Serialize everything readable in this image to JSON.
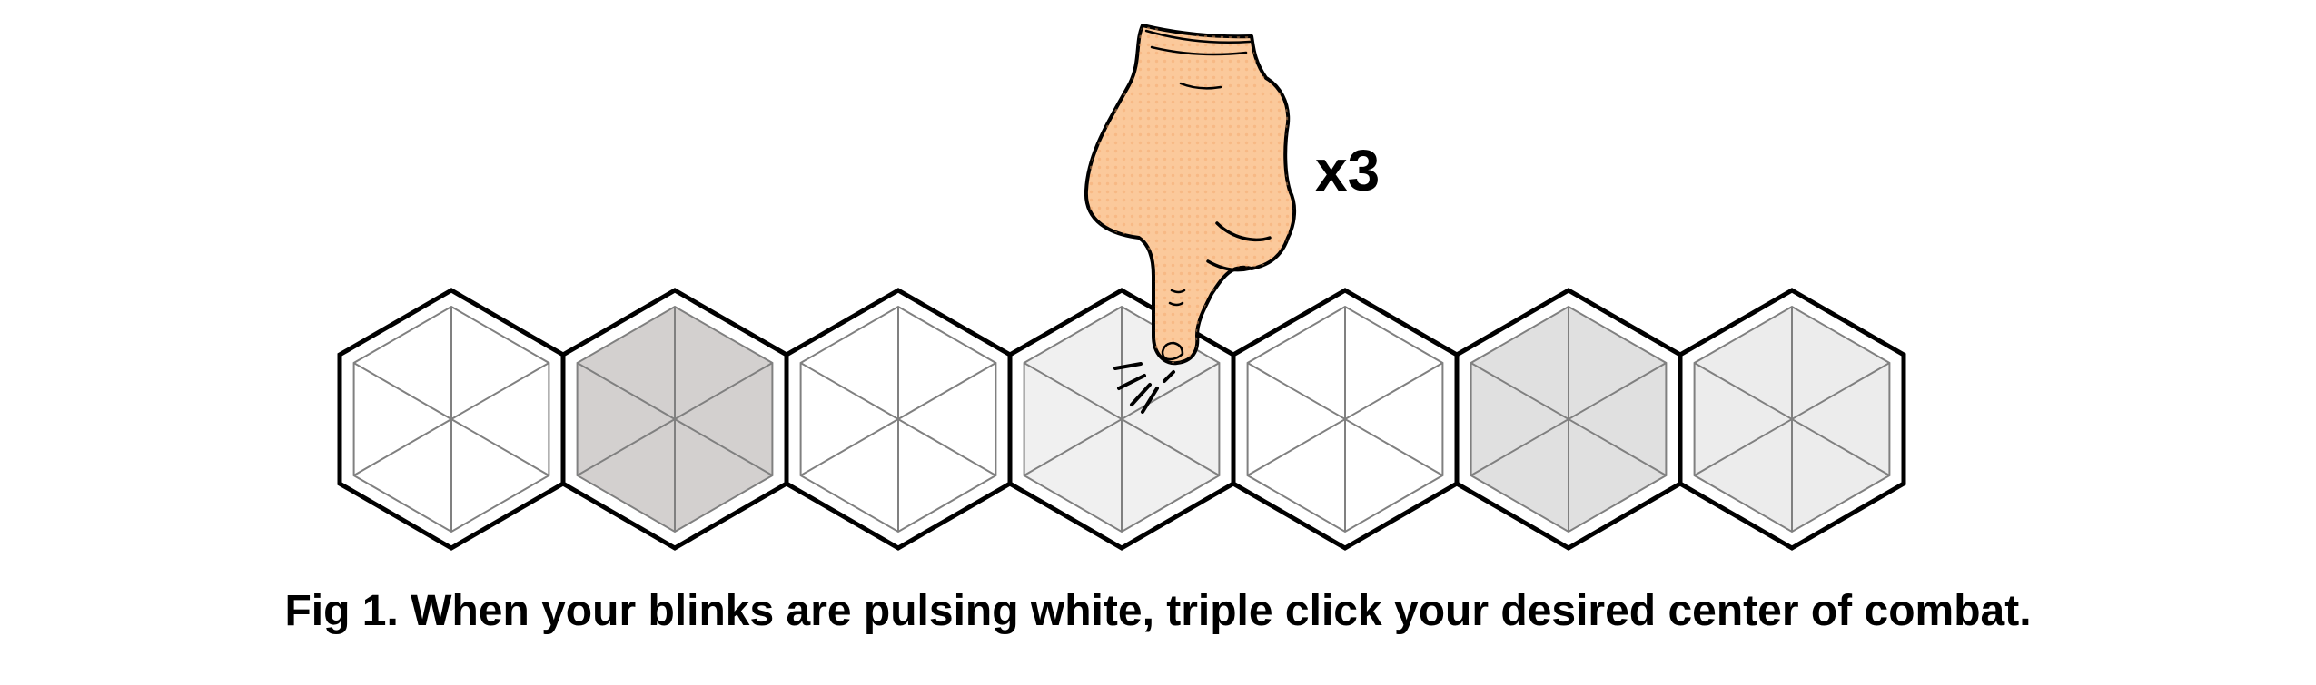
{
  "figure": {
    "tap_count_label": "x3",
    "caption": "Fig 1. When your blinks are pulsing white, triple click your desired center of combat.",
    "selected_blink": 4,
    "blinks": [
      {
        "name": "blink-1",
        "fill": "#ffffff"
      },
      {
        "name": "blink-2",
        "fill": "#d3d0cf"
      },
      {
        "name": "blink-3",
        "fill": "#ffffff"
      },
      {
        "name": "blink-4",
        "fill": "#f0f0f0"
      },
      {
        "name": "blink-5",
        "fill": "#ffffff"
      },
      {
        "name": "blink-6",
        "fill": "#e0e0e0"
      },
      {
        "name": "blink-7",
        "fill": "#ececec"
      }
    ],
    "colors": {
      "outline": "#000000",
      "inner_lines": "#808080",
      "hand_fill": "#fbc99b",
      "hand_dots": "#f2a66a"
    },
    "icons": [
      "hand-tap-icon"
    ]
  }
}
